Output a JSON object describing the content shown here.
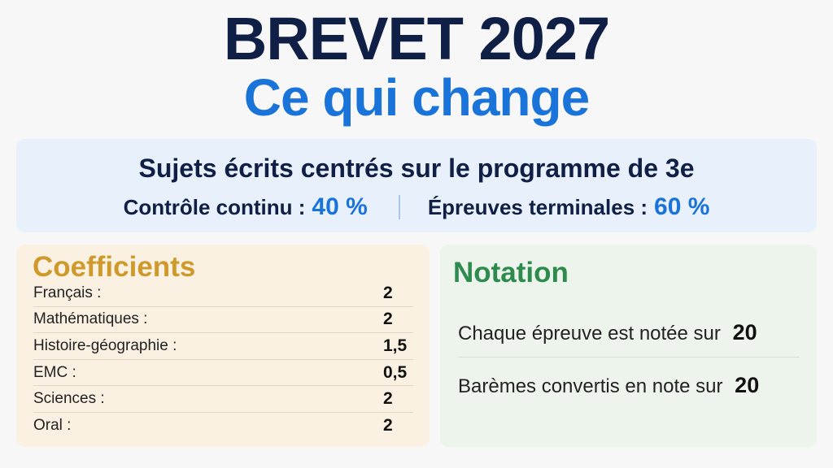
{
  "header": {
    "title": "BREVET 2027",
    "subtitle": "Ce qui change"
  },
  "info": {
    "headline": "Sujets écrits centrés sur le programme de 3e",
    "left_label": "Contrôle continu :",
    "left_value": "40 %",
    "separator": "|",
    "right_label": "Épreuves terminales :",
    "right_value": "60 %"
  },
  "coefficients": {
    "title": "Coefficients",
    "rows": [
      {
        "label": "Français :",
        "value": "2"
      },
      {
        "label": "Mathématiques :",
        "value": "2"
      },
      {
        "label": "Histoire-géographie :",
        "value": "1,5"
      },
      {
        "label": "EMC :",
        "value": "0,5"
      },
      {
        "label": "Sciences :",
        "value": "2"
      },
      {
        "label": "Oral :",
        "value": "2"
      }
    ]
  },
  "notation": {
    "title": "Notation",
    "line1_text": "Chaque épreuve est notée sur",
    "line1_value": "20",
    "line2_text": "Barèmes convertis en note sur",
    "line2_value": "20"
  },
  "colors": {
    "title_navy": "#0f1f45",
    "accent_blue": "#1a73d9",
    "gold": "#cf9a2b",
    "green": "#2e8b4e",
    "separator": "#a9c6e6"
  }
}
